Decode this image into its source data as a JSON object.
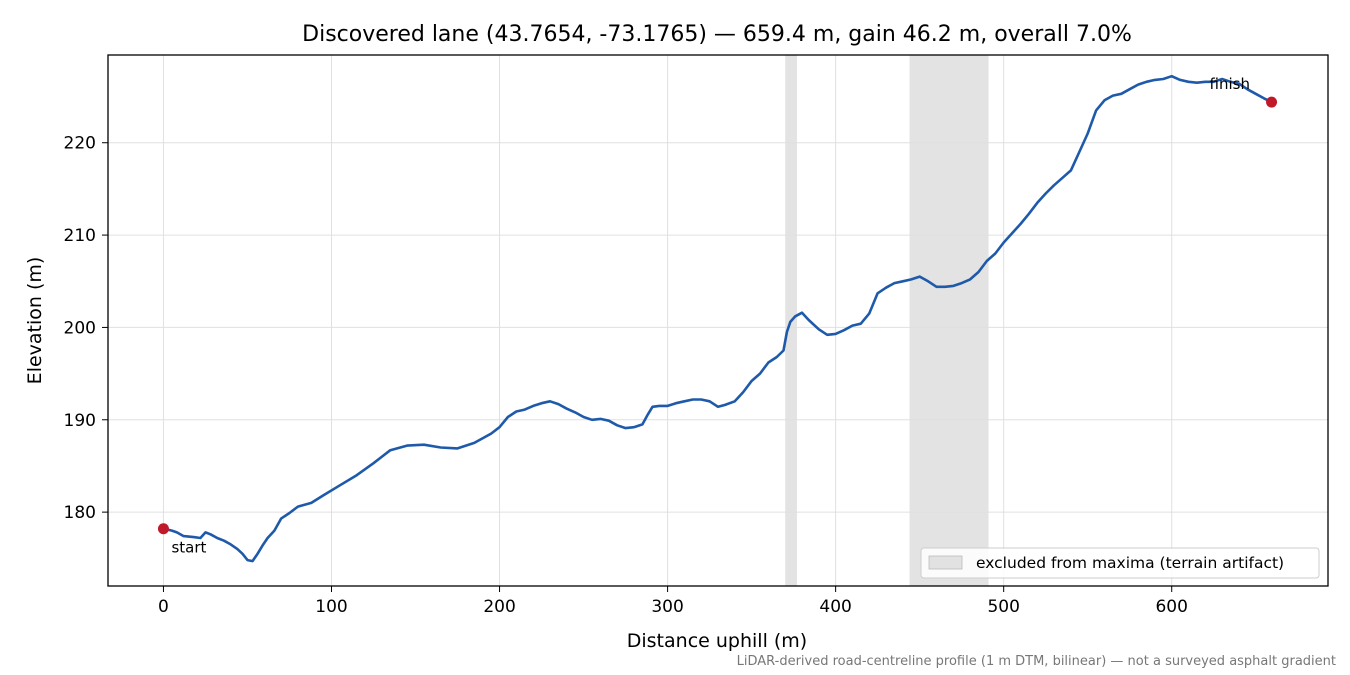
{
  "chart_data": {
    "type": "line",
    "title": "Discovered lane (43.7654, -73.1765) — 659.4 m, gain 46.2 m, overall 7.0%",
    "xlabel": "Distance uphill (m)",
    "ylabel": "Elevation (m)",
    "xlim": [
      -33,
      693
    ],
    "ylim": [
      172,
      229.5
    ],
    "xticks": [
      0,
      100,
      200,
      300,
      400,
      500,
      600
    ],
    "yticks": [
      180,
      190,
      200,
      210,
      220
    ],
    "grid": true,
    "footnote": "LiDAR-derived road-centreline profile (1 m DTM, bilinear) — not a surveyed asphalt gradient",
    "legend": {
      "placement": "lower-right",
      "entries": [
        "excluded from maxima (terrain artifact)"
      ]
    },
    "excluded_ranges": [
      [
        370,
        377
      ],
      [
        444,
        491
      ]
    ],
    "colors": {
      "line": "#1f5aaa",
      "markers": "#c0192a",
      "excluded": "#dcdcdc",
      "grid": "#e0e0e0",
      "footnote": "#777777"
    },
    "markers": [
      {
        "label": "start",
        "x": 0,
        "y": 178.2
      },
      {
        "label": "finish",
        "x": 659.4,
        "y": 224.4
      }
    ],
    "series": [
      {
        "x": [
          0,
          5,
          8,
          12,
          18,
          22,
          25,
          28,
          32,
          36,
          40,
          44,
          47,
          50,
          53,
          56,
          59,
          62,
          66,
          70,
          75,
          80,
          88,
          95,
          105,
          115,
          125,
          135,
          145,
          155,
          165,
          175,
          185,
          195,
          200,
          205,
          210,
          215,
          220,
          225,
          230,
          235,
          240,
          245,
          250,
          255,
          260,
          265,
          270,
          275,
          280,
          285,
          288,
          291,
          295,
          300,
          305,
          310,
          315,
          320,
          325,
          330,
          334,
          340,
          345,
          350,
          355,
          360,
          365,
          369,
          371,
          373,
          376,
          380,
          384,
          390,
          395,
          400,
          405,
          410,
          415,
          420,
          425,
          430,
          435,
          440,
          445,
          450,
          455,
          460,
          465,
          470,
          475,
          480,
          485,
          490,
          495,
          500,
          505,
          510,
          515,
          520,
          525,
          530,
          535,
          540,
          545,
          550,
          555,
          560,
          565,
          570,
          575,
          580,
          585,
          590,
          595,
          600,
          605,
          610,
          615,
          620,
          625,
          630,
          635,
          640,
          645,
          650,
          655,
          659.4
        ],
        "y": [
          178.2,
          178.0,
          177.8,
          177.4,
          177.3,
          177.2,
          177.8,
          177.6,
          177.2,
          176.9,
          176.5,
          176.0,
          175.5,
          174.8,
          174.7,
          175.5,
          176.4,
          177.2,
          178.0,
          179.3,
          179.9,
          180.6,
          181.0,
          181.8,
          182.9,
          184.0,
          185.3,
          186.7,
          187.2,
          187.3,
          187.0,
          186.9,
          187.5,
          188.5,
          189.2,
          190.3,
          190.9,
          191.1,
          191.5,
          191.8,
          192.0,
          191.7,
          191.2,
          190.8,
          190.3,
          190.0,
          190.1,
          189.9,
          189.4,
          189.1,
          189.2,
          189.5,
          190.5,
          191.4,
          191.5,
          191.5,
          191.8,
          192.0,
          192.2,
          192.2,
          192.0,
          191.4,
          191.6,
          192.0,
          193.0,
          194.2,
          195.0,
          196.2,
          196.8,
          197.5,
          199.5,
          200.6,
          201.2,
          201.6,
          200.8,
          199.8,
          199.2,
          199.3,
          199.7,
          200.2,
          200.4,
          201.5,
          203.7,
          204.3,
          204.8,
          205.0,
          205.2,
          205.5,
          205.0,
          204.4,
          204.4,
          204.5,
          204.8,
          205.2,
          206.0,
          207.2,
          208.0,
          209.2,
          210.2,
          211.2,
          212.3,
          213.5,
          214.5,
          215.4,
          216.2,
          217.0,
          219.0,
          221.0,
          223.5,
          224.6,
          225.1,
          225.3,
          225.8,
          226.3,
          226.6,
          226.8,
          226.9,
          227.2,
          226.8,
          226.6,
          226.5,
          226.6,
          226.6,
          226.9,
          226.6,
          226.4,
          225.8,
          225.3,
          224.8,
          224.4
        ]
      }
    ]
  }
}
